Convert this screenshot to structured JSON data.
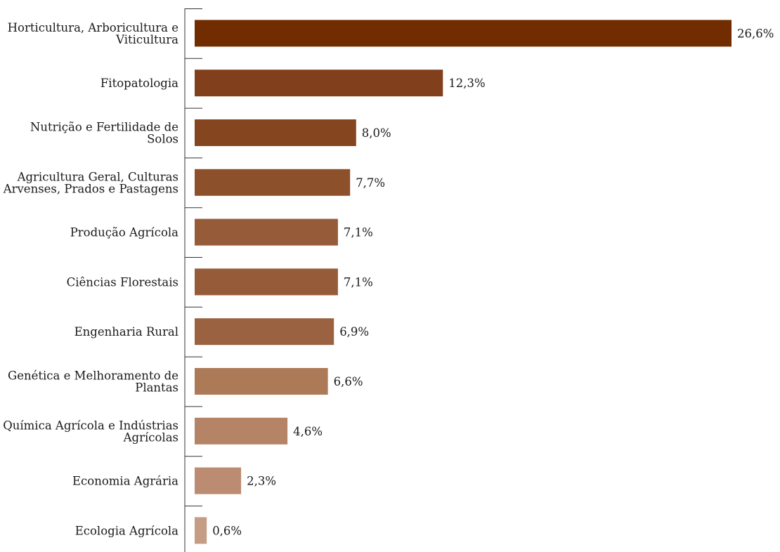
{
  "chart_data": {
    "type": "bar",
    "orientation": "horizontal",
    "title": "",
    "xlabel": "",
    "ylabel": "",
    "grid": false,
    "legend": "none",
    "xlim": [
      0,
      26.6
    ],
    "categories": [
      "Horticultura, Arboricultura e Viticultura",
      "Fitopatologia",
      "Nutrição e Fertilidade de Solos",
      "Agricultura Geral, Culturas Arvenses, Prados e Pastagens",
      "Produção Agrícola",
      "Ciências Florestais",
      "Engenharia Rural",
      "Genética e Melhoramento de Plantas",
      "Química Agrícola e Indústrias Agrícolas",
      "Economia Agrária",
      "Ecologia Agrícola"
    ],
    "category_lines": [
      [
        "Horticultura, Arboricultura e",
        "Viticultura"
      ],
      [
        "Fitopatologia"
      ],
      [
        "Nutrição e Fertilidade de",
        "Solos"
      ],
      [
        "Agricultura Geral, Culturas",
        "Arvenses, Prados e Pastagens"
      ],
      [
        "Produção Agrícola"
      ],
      [
        "Ciências Florestais"
      ],
      [
        "Engenharia Rural"
      ],
      [
        "Genética e Melhoramento de",
        "Plantas"
      ],
      [
        "Química Agrícola e Indústrias",
        "Agrícolas"
      ],
      [
        "Economia Agrária"
      ],
      [
        "Ecologia Agrícola"
      ]
    ],
    "values": [
      26.6,
      12.3,
      8.0,
      7.7,
      7.1,
      7.1,
      6.9,
      6.6,
      4.6,
      2.3,
      0.6
    ],
    "value_labels": [
      "26,6%",
      "12,3%",
      "8,0%",
      "7,7%",
      "7,1%",
      "7,1%",
      "6,9%",
      "6,6%",
      "4,6%",
      "2,3%",
      "0,6%"
    ],
    "colors": [
      "#712d00",
      "#81401b",
      "#85451e",
      "#8c512b",
      "#965c3a",
      "#965c3a",
      "#9a6240",
      "#ad7a58",
      "#b58466",
      "#bb8c71",
      "#c59d85"
    ]
  }
}
